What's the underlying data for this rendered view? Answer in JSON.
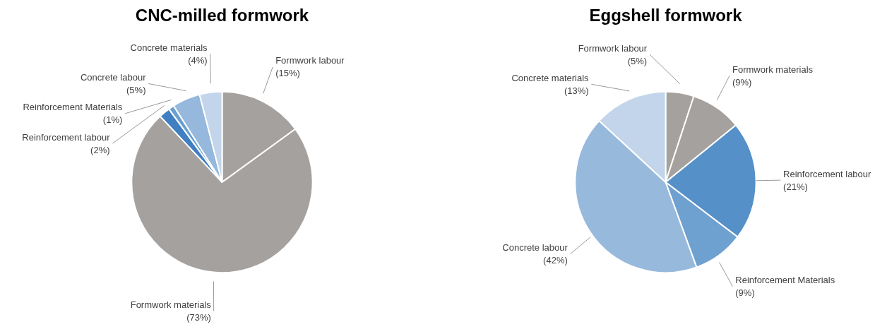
{
  "chart_data": [
    {
      "type": "pie",
      "title": "CNC-milled formwork",
      "categories": [
        "Formwork labour",
        "Formwork materials",
        "Reinforcement labour",
        "Reinforcement Materials",
        "Concrete labour",
        "Concrete materials"
      ],
      "values": [
        15,
        73,
        2,
        1,
        5,
        4
      ],
      "value_labels": [
        "(15%)",
        "(73%)",
        "(2%)",
        "(1%)",
        "(5%)",
        "(4%)"
      ],
      "colors": [
        "#a5a19e",
        "#a5a19e",
        "#3f7fc2",
        "#6a9fd0",
        "#95b8dc",
        "#c2d5ea"
      ]
    },
    {
      "type": "pie",
      "title": "Eggshell formwork",
      "categories": [
        "Formwork labour",
        "Formwork materials",
        "Reinforcement labour",
        "Reinforcement Materials",
        "Concrete labour",
        "Concrete materials"
      ],
      "values": [
        5,
        9,
        21,
        9,
        42,
        13
      ],
      "value_labels": [
        "(5%)",
        "(9%)",
        "(21%)",
        "(9%)",
        "(42%)",
        "(13%)"
      ],
      "colors": [
        "#a5a19e",
        "#a5a19e",
        "#5590c8",
        "#6ea0d0",
        "#97b9dc",
        "#c2d5ea"
      ]
    }
  ]
}
